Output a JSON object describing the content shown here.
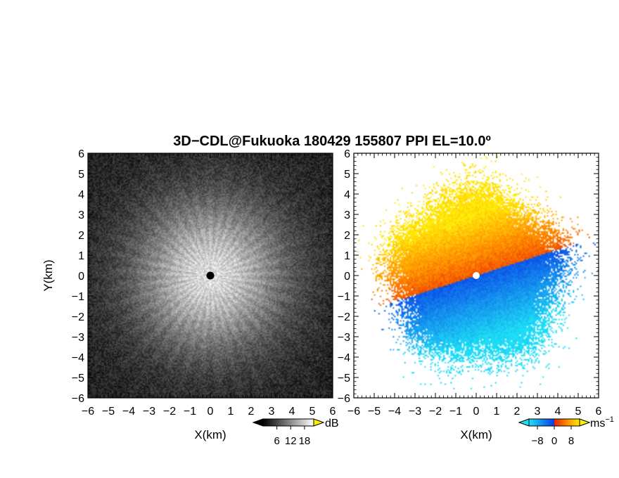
{
  "title": "3D−CDL@Fukuoka 180429 155807 PPI EL=10.0º",
  "chart_data": [
    {
      "type": "heatmap",
      "panel": "left",
      "quantity": "signal intensity",
      "xlabel": "X(km)",
      "ylabel": "Y(km)",
      "xlim": [
        -6,
        6
      ],
      "ylim": [
        -6,
        6
      ],
      "xticks": [
        -6,
        -5,
        -4,
        -3,
        -2,
        -1,
        0,
        1,
        2,
        3,
        4,
        5,
        6
      ],
      "yticks": [
        -6,
        -5,
        -4,
        -3,
        -2,
        -1,
        0,
        1,
        2,
        3,
        4,
        5,
        6
      ],
      "tick_labels": [
        "−6",
        "−5",
        "−4",
        "−3",
        "−2",
        "−1",
        "0",
        "1",
        "2",
        "3",
        "4",
        "5",
        "6"
      ],
      "colormap": "grayscale",
      "colorbar": {
        "ticks": [
          6,
          12,
          18
        ],
        "tick_labels": [
          "6",
          "12",
          "18"
        ],
        "unit": "dB",
        "range": [
          0,
          22
        ]
      },
      "description_values": {
        "center_x": 0,
        "center_y": 0,
        "max_near_center_dB": 18,
        "background_dB": 2
      }
    },
    {
      "type": "heatmap",
      "panel": "right",
      "quantity": "radial velocity",
      "xlabel": "X(km)",
      "ylabel": "",
      "xlim": [
        -6,
        6
      ],
      "ylim": [
        -6,
        6
      ],
      "xticks": [
        -6,
        -5,
        -4,
        -3,
        -2,
        -1,
        0,
        1,
        2,
        3,
        4,
        5,
        6
      ],
      "yticks": [
        -6,
        -5,
        -4,
        -3,
        -2,
        -1,
        0,
        1,
        2,
        3,
        4,
        5,
        6
      ],
      "tick_labels": [
        "−6",
        "−5",
        "−4",
        "−3",
        "−2",
        "−1",
        "0",
        "1",
        "2",
        "3",
        "4",
        "5",
        "6"
      ],
      "colormap": "blue-cyan / red-yellow diverging",
      "colorbar": {
        "ticks": [
          -8,
          0,
          8
        ],
        "tick_labels": [
          "−8",
          "0",
          "8"
        ],
        "unit": "ms",
        "unit_exponent": "−1",
        "range": [
          -12,
          12
        ]
      },
      "description_values": {
        "data_radius_km": 4.5,
        "positive_sector": "north",
        "negative_sector": "south"
      }
    }
  ],
  "colors": {
    "cyan": "#1ee0f5",
    "blue": "#0a3ce6",
    "red": "#e62200",
    "orange": "#ff8c00",
    "yellow": "#ffee00",
    "center_marker_left": "#000000",
    "center_marker_right": "#ffffff"
  }
}
